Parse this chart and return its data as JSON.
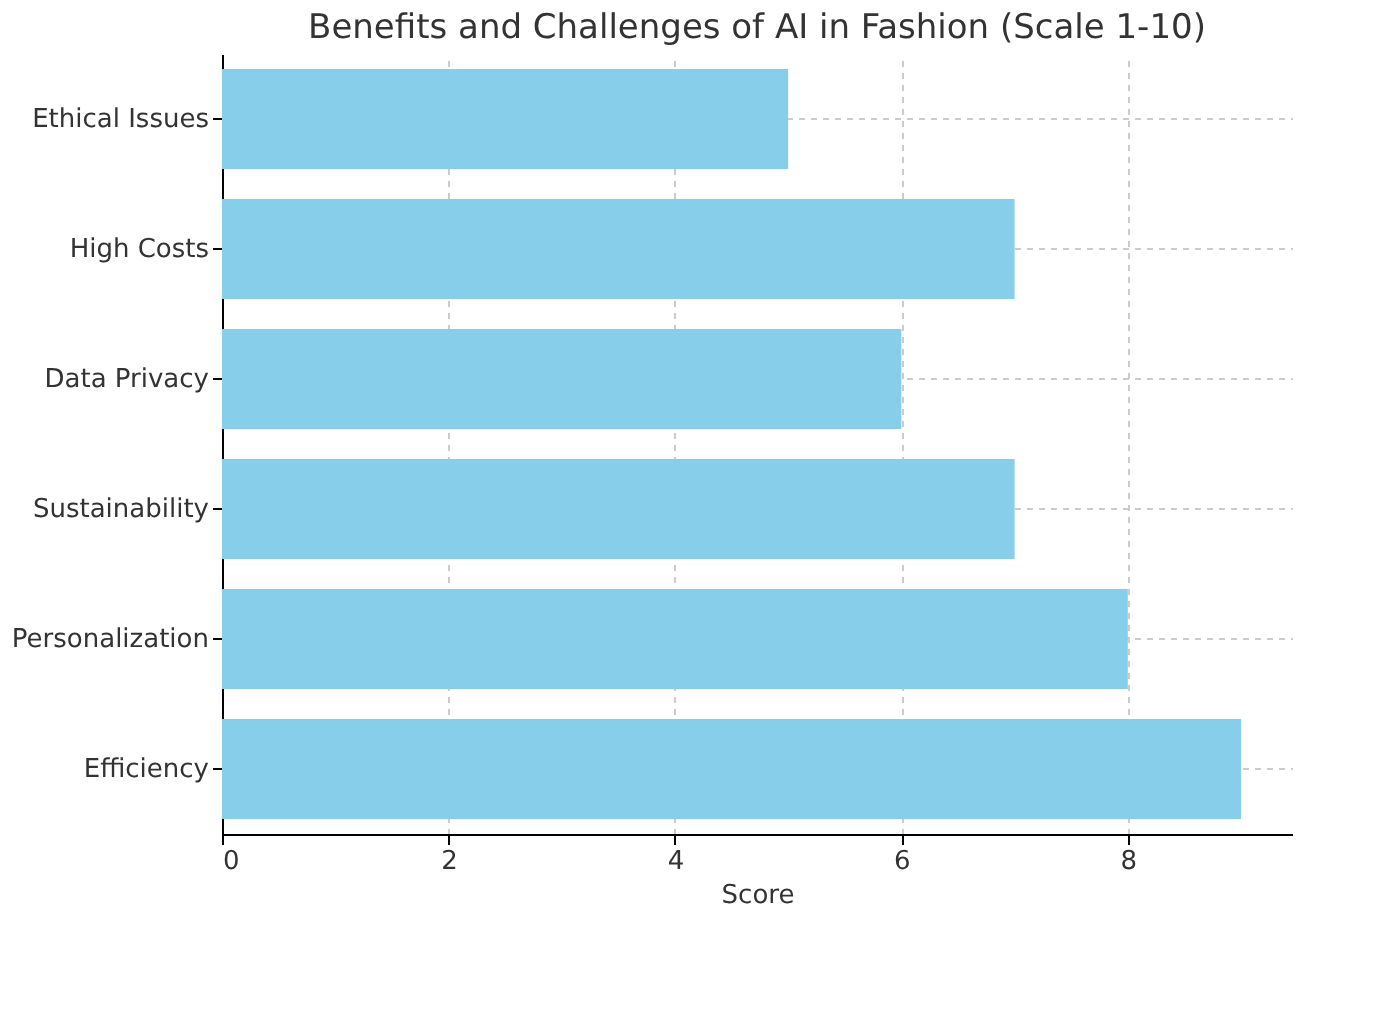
{
  "chart_data": {
    "type": "bar",
    "orientation": "horizontal",
    "title": "Benefits and Challenges of AI in Fashion (Scale 1-10)",
    "xlabel": "Score",
    "categories": [
      "Ethical Issues",
      "High Costs",
      "Data Privacy",
      "Sustainability",
      "Personalization",
      "Efficiency"
    ],
    "values": [
      5,
      7,
      6,
      7,
      8,
      9
    ],
    "color": "#87ceeb",
    "xlim": [
      0,
      9.45
    ],
    "xticks": [
      0,
      2,
      4,
      6,
      8
    ],
    "grid": true
  }
}
